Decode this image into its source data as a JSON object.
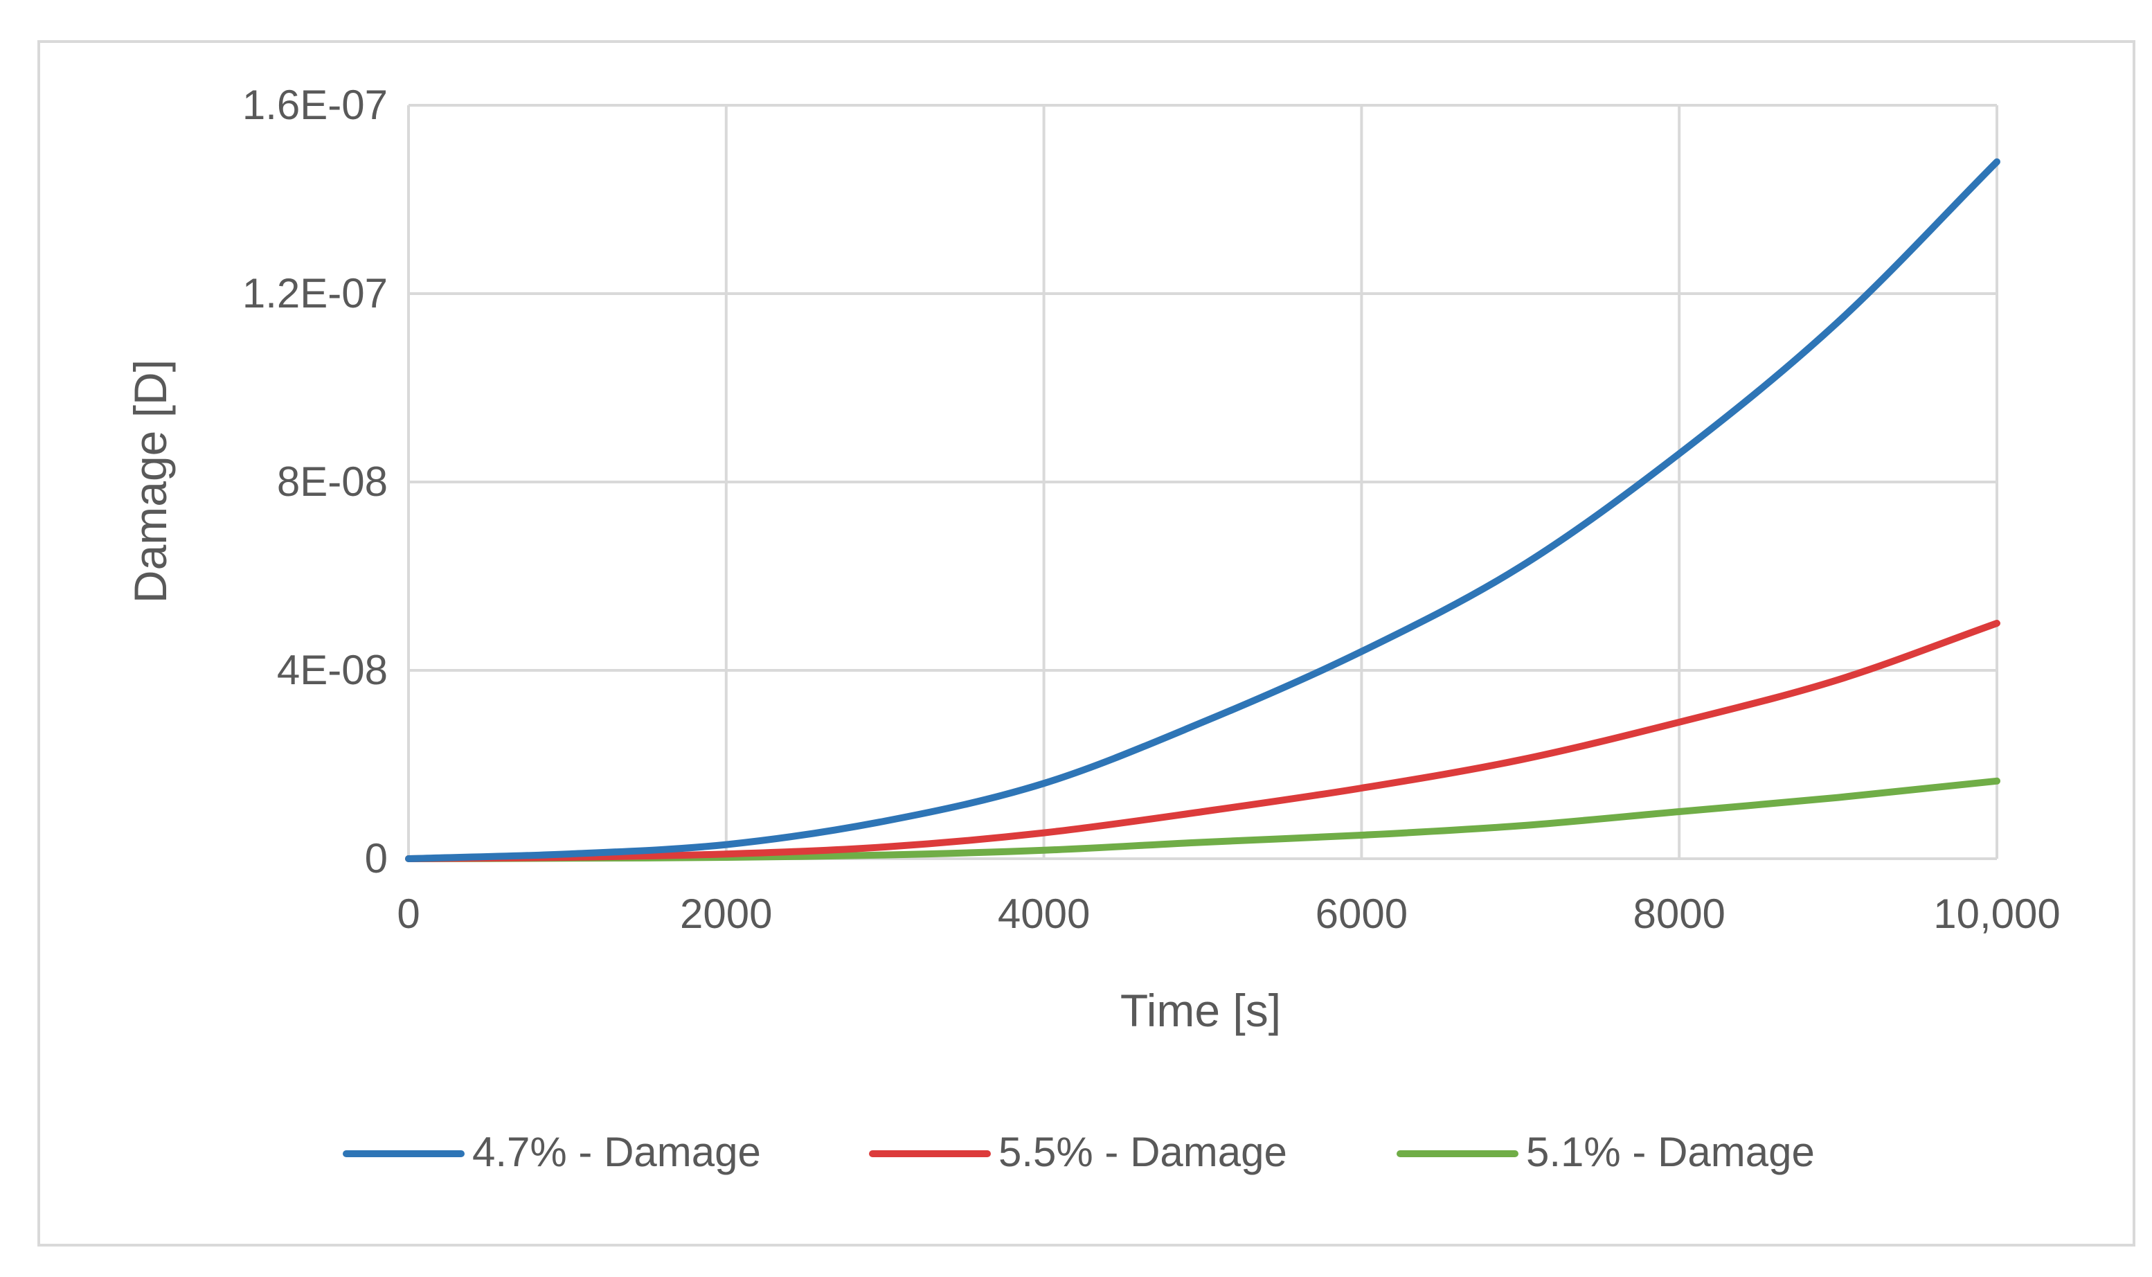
{
  "chart_data": {
    "type": "line",
    "xlabel": "Time [s]",
    "ylabel": "Damage [D]",
    "xlim": [
      0,
      10000
    ],
    "ylim": [
      0,
      1.6e-07
    ],
    "x_ticks": [
      {
        "value": 0,
        "label": "0"
      },
      {
        "value": 2000,
        "label": "2000"
      },
      {
        "value": 4000,
        "label": "4000"
      },
      {
        "value": 6000,
        "label": "6000"
      },
      {
        "value": 8000,
        "label": "8000"
      },
      {
        "value": 10000,
        "label": "10,000"
      }
    ],
    "y_ticks": [
      {
        "value": 0,
        "label": "0"
      },
      {
        "value": 4e-08,
        "label": "4E-08"
      },
      {
        "value": 8e-08,
        "label": "8E-08"
      },
      {
        "value": 1.2e-07,
        "label": "1.2E-07"
      },
      {
        "value": 1.6e-07,
        "label": "1.6E-07"
      }
    ],
    "grid": true,
    "legend_position": "bottom",
    "x": [
      0,
      1000,
      2000,
      3000,
      4000,
      5000,
      6000,
      7000,
      8000,
      9000,
      10000
    ],
    "series": [
      {
        "name": "4.7% - Damage",
        "color": "#2e75b6",
        "values": [
          0,
          1e-09,
          3e-09,
          8e-09,
          1.6e-08,
          2.9e-08,
          4.4e-08,
          6.2e-08,
          8.6e-08,
          1.14e-07,
          1.48e-07
        ]
      },
      {
        "name": "5.5% - Damage",
        "color": "#dc3b3b",
        "values": [
          0,
          3e-10,
          1e-09,
          2.5e-09,
          5.5e-09,
          1e-08,
          1.5e-08,
          2.1e-08,
          2.9e-08,
          3.8e-08,
          5e-08
        ]
      },
      {
        "name": "5.1% - Damage",
        "color": "#70ad47",
        "values": [
          0,
          1e-10,
          3e-10,
          8e-10,
          1.8e-09,
          3.5e-09,
          5e-09,
          7e-09,
          1e-08,
          1.3e-08,
          1.65e-08
        ]
      }
    ]
  }
}
